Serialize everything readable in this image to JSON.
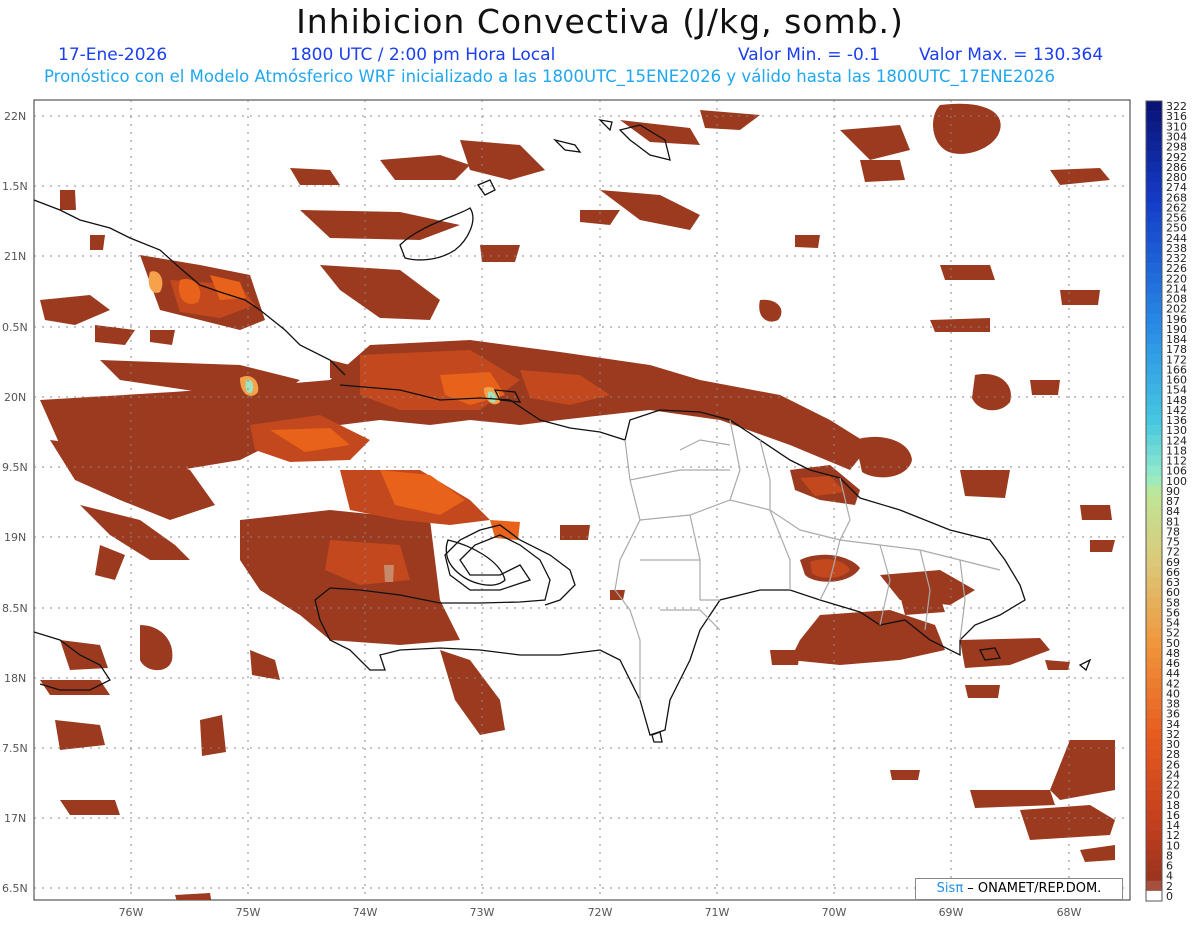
{
  "header": {
    "title": "Inhibicion Convectiva (J/kg, somb.)",
    "date": "17-Ene-2026",
    "time": "1800 UTC / 2:00 pm Hora Local",
    "valmin": "Valor Min. = -0.1",
    "valmax": "Valor Max. = 130.364",
    "forecast": "Pronóstico con el Modelo Atmósferico WRF inicializado a las 1800UTC_15ENE2026 y válido hasta las  1800UTC_17ENE2026"
  },
  "axes": {
    "lat_labels": [
      "22N",
      "1.5N",
      "21N",
      "0.5N",
      "20N",
      "9.5N",
      "19N",
      "8.5N",
      "18N",
      "7.5N",
      "17N",
      "6.5N"
    ],
    "lon_labels": [
      "76W",
      "75W",
      "74W",
      "73W",
      "72W",
      "71W",
      "70W",
      "69W",
      "68W"
    ]
  },
  "colorbar": {
    "labels": [
      "322",
      "316",
      "310",
      "304",
      "298",
      "292",
      "286",
      "280",
      "274",
      "268",
      "262",
      "256",
      "250",
      "244",
      "238",
      "232",
      "226",
      "220",
      "214",
      "208",
      "202",
      "196",
      "190",
      "184",
      "178",
      "172",
      "166",
      "160",
      "154",
      "148",
      "142",
      "136",
      "130",
      "124",
      "118",
      "112",
      "106",
      "100",
      "90",
      "87",
      "84",
      "81",
      "78",
      "75",
      "72",
      "69",
      "66",
      "63",
      "60",
      "58",
      "56",
      "54",
      "52",
      "50",
      "48",
      "46",
      "44",
      "42",
      "40",
      "38",
      "36",
      "34",
      "32",
      "30",
      "28",
      "26",
      "24",
      "22",
      "20",
      "18",
      "16",
      "14",
      "12",
      "10",
      "8",
      "6",
      "4",
      "2",
      "0"
    ]
  },
  "credit": {
    "sis": "Sis",
    "pi": "π",
    "rest": "– ONAMET/REP.DOM."
  },
  "colors": {
    "shade_main": "#9b3a1f",
    "shade_mid": "#c9461c",
    "shade_hot": "#ee6a18",
    "shade_peak": "#f59a3a",
    "shade_max": "#8fe0b5",
    "title_blue": "#1a3ef0",
    "cyan_text": "#20a7f0"
  }
}
